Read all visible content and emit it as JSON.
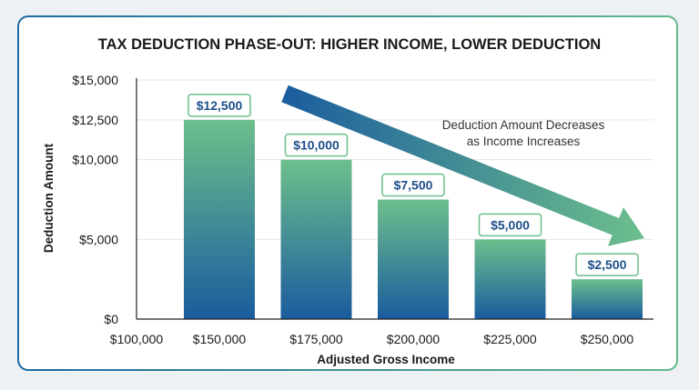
{
  "chart_data": {
    "type": "bar",
    "title": "TAX DEDUCTION PHASE-OUT: HIGHER INCOME, LOWER DEDUCTION",
    "xlabel": "Adjusted Gross Income",
    "ylabel": "Deduction Amount",
    "x_tick_labels": [
      "$100,000",
      "$150,000",
      "$175,000",
      "$200,000",
      "$225,000",
      "$250,000"
    ],
    "categories": [
      "$150,000",
      "$175,000",
      "$200,000",
      "$225,000",
      "$250,000"
    ],
    "values": [
      12500,
      10000,
      7500,
      5000,
      2500
    ],
    "data_labels": [
      "$12,500",
      "$10,000",
      "$7,500",
      "$5,000",
      "$2,500"
    ],
    "y_ticks": [
      0,
      5000,
      10000,
      12500,
      15000
    ],
    "y_tick_labels": [
      "$0",
      "$5,000",
      "$10,000",
      "$12,500",
      "$15,000"
    ],
    "ylim": [
      0,
      15000
    ],
    "grid": true,
    "annotation": {
      "lines": [
        "Deduction Amount Decreases",
        "as Income Increases"
      ]
    },
    "colors": {
      "bar_top": "#6dbf8c",
      "bar_bottom": "#1a5c9e",
      "label_border": "#6dbf8c",
      "label_text": "#1d4f8a",
      "arrow_start": "#1a5c9e",
      "arrow_end": "#6dbf8c",
      "axis": "#222222",
      "grid": "#e3e6ea"
    }
  }
}
